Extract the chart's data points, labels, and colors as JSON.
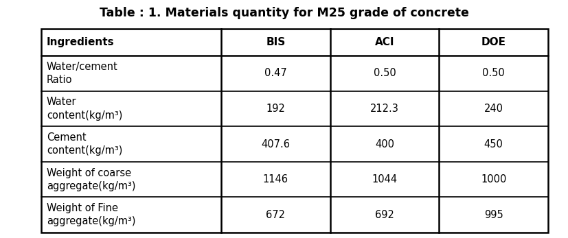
{
  "title": "Table : 1. Materials quantity for M25 grade of concrete",
  "title_fontsize": 12.5,
  "title_fontweight": "bold",
  "col_headers": [
    "Ingredients",
    "BIS",
    "ACI",
    "DOE"
  ],
  "col_header_fontsize": 11,
  "col_header_fontweight": "bold",
  "rows": [
    [
      "Water/cement\nRatio",
      "0.47",
      "0.50",
      "0.50"
    ],
    [
      "Water\ncontent(kg/m³)",
      "192",
      "212.3",
      "240"
    ],
    [
      "Cement\ncontent(kg/m³)",
      "407.6",
      "400",
      "450"
    ],
    [
      "Weight of coarse\naggregate(kg/m³)",
      "1146",
      "1044",
      "1000"
    ],
    [
      "Weight of Fine\naggregate(kg/m³)",
      "672",
      "692",
      "995"
    ]
  ],
  "row_fontsize": 10.5,
  "background_color": "#ffffff",
  "line_color": "#000000",
  "text_color": "#000000",
  "fig_width": 8.28,
  "fig_height": 3.47,
  "dpi": 100
}
